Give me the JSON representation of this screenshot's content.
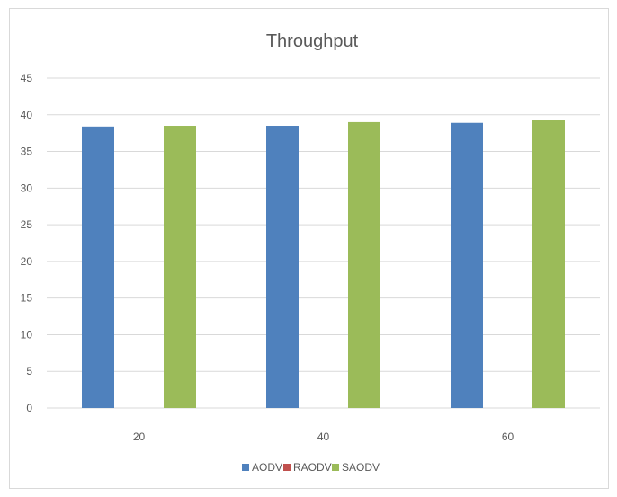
{
  "chart_data": {
    "type": "bar",
    "title": "Throughput",
    "xlabel": "",
    "ylabel": "",
    "categories": [
      "20",
      "40",
      "60"
    ],
    "series": [
      {
        "name": "AODV",
        "values": [
          38.4,
          38.5,
          38.9
        ],
        "color": "#4f81bd"
      },
      {
        "name": "RAODV",
        "values": [
          0,
          0,
          0
        ],
        "color": "#c0504d"
      },
      {
        "name": "SAODV",
        "values": [
          38.5,
          39.0,
          39.3
        ],
        "color": "#9bbb59"
      }
    ],
    "ylim": [
      0,
      45
    ],
    "yticks": [
      0,
      5,
      10,
      15,
      20,
      25,
      30,
      35,
      40,
      45
    ],
    "grid": true,
    "legend_position": "bottom"
  }
}
